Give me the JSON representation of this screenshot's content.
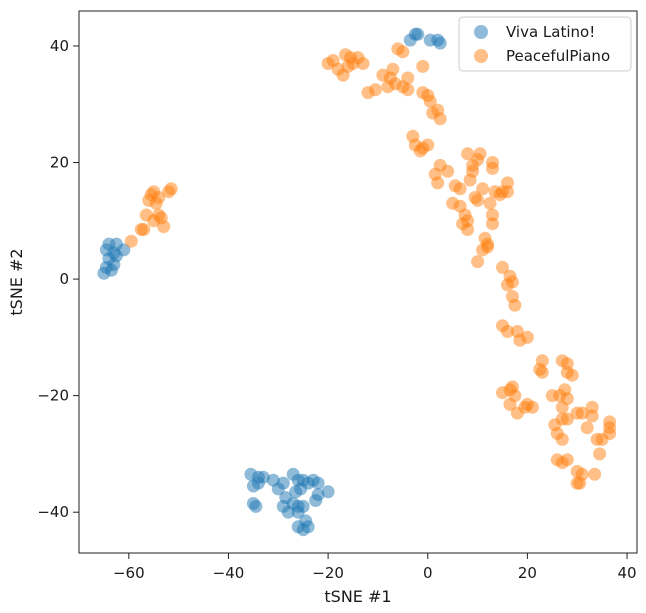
{
  "chart_data": {
    "type": "scatter",
    "title": "",
    "xlabel": "tSNE #1",
    "ylabel": "tSNE #2",
    "xlim": [
      -70,
      42
    ],
    "ylim": [
      -47,
      46
    ],
    "xticks": [
      {
        "value": -60,
        "label": "−60"
      },
      {
        "value": -40,
        "label": "−40"
      },
      {
        "value": -20,
        "label": "−20"
      },
      {
        "value": 0,
        "label": "0"
      },
      {
        "value": 20,
        "label": "20"
      },
      {
        "value": 40,
        "label": "40"
      }
    ],
    "yticks": [
      {
        "value": -40,
        "label": "−40"
      },
      {
        "value": -20,
        "label": "−20"
      },
      {
        "value": 0,
        "label": "0"
      },
      {
        "value": 20,
        "label": "20"
      },
      {
        "value": 40,
        "label": "40"
      }
    ],
    "grid": false,
    "legend_position": "top-right",
    "series": [
      {
        "name": "Viva Latino!",
        "color": "#1f77b4",
        "points": [
          [
            -65,
            1
          ],
          [
            -64.5,
            2
          ],
          [
            -64,
            3.5
          ],
          [
            -64.5,
            5
          ],
          [
            -63,
            2.5
          ],
          [
            -63.5,
            1.5
          ],
          [
            -64,
            6
          ],
          [
            -63,
            4.5
          ],
          [
            -62.5,
            6
          ],
          [
            -62.5,
            4
          ],
          [
            -61,
            5
          ],
          [
            -3.5,
            41
          ],
          [
            -2.5,
            42
          ],
          [
            -2,
            42
          ],
          [
            0.5,
            41
          ],
          [
            2,
            41
          ],
          [
            2.5,
            40.5
          ],
          [
            -35.5,
            -33.5
          ],
          [
            -34,
            -34
          ],
          [
            -35,
            -35.5
          ],
          [
            -34,
            -35
          ],
          [
            -33,
            -34
          ],
          [
            -31,
            -34.5
          ],
          [
            -35,
            -38.5
          ],
          [
            -34.5,
            -39
          ],
          [
            -30,
            -36
          ],
          [
            -29,
            -35
          ],
          [
            -28.5,
            -37.5
          ],
          [
            -29,
            -39
          ],
          [
            -27,
            -38.5
          ],
          [
            -28,
            -40
          ],
          [
            -26,
            -40
          ],
          [
            -27,
            -33.5
          ],
          [
            -26,
            -34.5
          ],
          [
            -25,
            -34.5
          ],
          [
            -24,
            -35
          ],
          [
            -23,
            -34.5
          ],
          [
            -22,
            -35
          ],
          [
            -26.5,
            -36.5
          ],
          [
            -25.5,
            -36
          ],
          [
            -22,
            -37
          ],
          [
            -20,
            -36.5
          ],
          [
            -22.5,
            -38
          ],
          [
            -26,
            -39
          ],
          [
            -25,
            -39
          ],
          [
            -26,
            -42.5
          ],
          [
            -25,
            -43
          ],
          [
            -24.5,
            -41.5
          ],
          [
            -24,
            -42.5
          ]
        ]
      },
      {
        "name": "PeacefulPiano",
        "color": "#ff7f0e",
        "points": [
          [
            -59.5,
            6.5
          ],
          [
            -57.5,
            8.5
          ],
          [
            -57,
            8.5
          ],
          [
            -56.5,
            11
          ],
          [
            -56,
            13.5
          ],
          [
            -55.5,
            14.5
          ],
          [
            -55,
            15
          ],
          [
            -54.5,
            13
          ],
          [
            -54,
            11
          ],
          [
            -55,
            10
          ],
          [
            -53.5,
            10.5
          ],
          [
            -54,
            14
          ],
          [
            -53,
            9
          ],
          [
            -52,
            15
          ],
          [
            -51.5,
            15.5
          ],
          [
            -20,
            37
          ],
          [
            -19,
            37.5
          ],
          [
            -18,
            36
          ],
          [
            -17,
            35
          ],
          [
            -16.5,
            38.5
          ],
          [
            -15.5,
            38
          ],
          [
            -16,
            36.5
          ],
          [
            -15,
            37
          ],
          [
            -14,
            38
          ],
          [
            -13,
            37
          ],
          [
            -12,
            32
          ],
          [
            -10.5,
            32.5
          ],
          [
            -9,
            35
          ],
          [
            -8,
            33
          ],
          [
            -7.5,
            34.5
          ],
          [
            -7,
            36
          ],
          [
            -6.5,
            33.5
          ],
          [
            -6,
            39.5
          ],
          [
            -5,
            39
          ],
          [
            -5,
            33
          ],
          [
            -4,
            34.5
          ],
          [
            -4,
            32.5
          ],
          [
            -1,
            36.5
          ],
          [
            -1,
            32
          ],
          [
            0,
            31.5
          ],
          [
            0.5,
            30.5
          ],
          [
            1,
            28.5
          ],
          [
            2,
            29
          ],
          [
            2.5,
            27.5
          ],
          [
            -3,
            24.5
          ],
          [
            -2.5,
            23
          ],
          [
            -1.5,
            22
          ],
          [
            -1,
            22.5
          ],
          [
            0,
            23
          ],
          [
            1.5,
            18
          ],
          [
            2,
            16.5
          ],
          [
            2.5,
            19.5
          ],
          [
            4,
            18.5
          ],
          [
            5,
            13
          ],
          [
            5.5,
            16
          ],
          [
            6.5,
            15.5
          ],
          [
            6.5,
            12.5
          ],
          [
            7,
            9.5
          ],
          [
            7.5,
            11
          ],
          [
            8,
            10
          ],
          [
            8,
            8.5
          ],
          [
            8,
            21.5
          ],
          [
            8.5,
            17
          ],
          [
            9,
            18.5
          ],
          [
            9,
            19.5
          ],
          [
            9.5,
            14
          ],
          [
            10,
            13.5
          ],
          [
            10,
            20.5
          ],
          [
            10.5,
            21.5
          ],
          [
            10,
            3
          ],
          [
            11,
            5
          ],
          [
            12,
            5.5
          ],
          [
            11,
            15.5
          ],
          [
            11.5,
            7
          ],
          [
            12,
            6
          ],
          [
            12.5,
            13
          ],
          [
            13,
            11
          ],
          [
            13,
            9.5
          ],
          [
            13,
            20
          ],
          [
            13,
            19
          ],
          [
            13.5,
            15
          ],
          [
            14.5,
            14.5
          ],
          [
            15,
            15
          ],
          [
            16,
            15
          ],
          [
            16,
            16.5
          ],
          [
            15,
            2
          ],
          [
            16.5,
            0.5
          ],
          [
            16,
            -1
          ],
          [
            17,
            -0.5
          ],
          [
            17,
            -3
          ],
          [
            17.5,
            -4.5
          ],
          [
            15,
            -8
          ],
          [
            16,
            -9
          ],
          [
            18,
            -9
          ],
          [
            18.5,
            -10.5
          ],
          [
            20,
            -10
          ],
          [
            23,
            -14
          ],
          [
            22.5,
            -15.5
          ],
          [
            23,
            -16
          ],
          [
            27,
            -14
          ],
          [
            28,
            -14.5
          ],
          [
            28,
            -16
          ],
          [
            29,
            -16.5
          ],
          [
            15,
            -19.5
          ],
          [
            16.5,
            -19
          ],
          [
            17,
            -18.5
          ],
          [
            17.5,
            -20
          ],
          [
            16.5,
            -21.5
          ],
          [
            19.5,
            -22
          ],
          [
            20,
            -21.5
          ],
          [
            18,
            -23
          ],
          [
            21,
            -22
          ],
          [
            25,
            -20
          ],
          [
            26.5,
            -20
          ],
          [
            27.5,
            -19
          ],
          [
            27,
            -22
          ],
          [
            28,
            -20.5
          ],
          [
            27,
            -24
          ],
          [
            28,
            -24
          ],
          [
            25.5,
            -25
          ],
          [
            26,
            -26.5
          ],
          [
            27,
            -27.5
          ],
          [
            30,
            -23
          ],
          [
            31,
            -23
          ],
          [
            32,
            -25.5
          ],
          [
            33,
            -22
          ],
          [
            33,
            -23.5
          ],
          [
            34,
            -27.5
          ],
          [
            35,
            -27.5
          ],
          [
            34.5,
            -30
          ],
          [
            36.5,
            -24.5
          ],
          [
            36.5,
            -25.5
          ],
          [
            36.5,
            -26.5
          ],
          [
            26,
            -31
          ],
          [
            27,
            -31.5
          ],
          [
            28,
            -31
          ],
          [
            30,
            -33
          ],
          [
            31,
            -33.5
          ],
          [
            30,
            -35
          ],
          [
            30.5,
            -35
          ],
          [
            33.5,
            -33.5
          ]
        ]
      }
    ]
  }
}
